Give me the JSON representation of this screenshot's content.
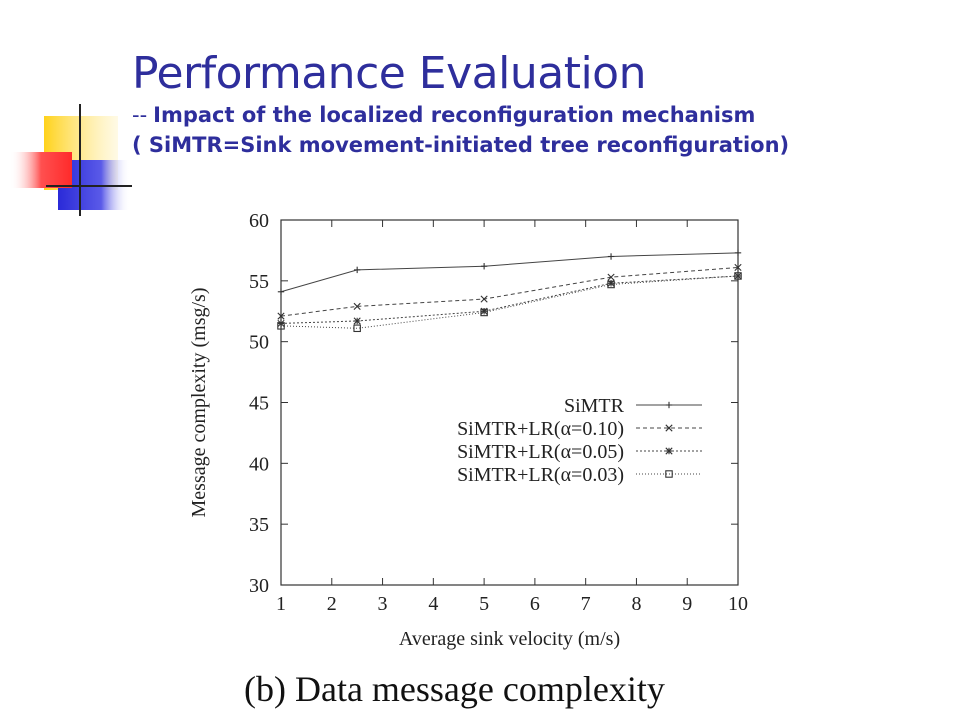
{
  "slide": {
    "title": "Performance Evaluation",
    "subtitle_prefix": "--",
    "subtitle_line1": "Impact of the localized reconfiguration mechanism",
    "subtitle_line2": "( SiMTR=Sink movement-initiated tree reconfiguration)",
    "title_color": "#2e2e9c"
  },
  "chart_data": {
    "type": "line",
    "xlabel": "Average sink velocity (m/s)",
    "ylabel": "Message complexity (msg/s)",
    "caption": "(b) Data message complexity",
    "xticks": [
      1,
      2,
      3,
      4,
      5,
      6,
      7,
      8,
      9,
      10
    ],
    "yticks": [
      30,
      35,
      40,
      45,
      50,
      55,
      60
    ],
    "xlim": [
      1,
      10
    ],
    "ylim": [
      30,
      60
    ],
    "legend_position": "center-right",
    "grid": false,
    "series": [
      {
        "name": "SiMTR",
        "marker": "plus",
        "dash": "none",
        "x": [
          1,
          2.5,
          5,
          7.5,
          10
        ],
        "y": [
          54.1,
          55.9,
          56.2,
          57.0,
          57.3
        ]
      },
      {
        "name": "SiMTR+LR(α=0.10)",
        "marker": "x",
        "dash": "4,3",
        "x": [
          1,
          2.5,
          5,
          7.5,
          10
        ],
        "y": [
          52.1,
          52.9,
          53.5,
          55.3,
          56.1
        ]
      },
      {
        "name": "SiMTR+LR(α=0.05)",
        "marker": "star",
        "dash": "2,2",
        "x": [
          1,
          2.5,
          5,
          7.5,
          10
        ],
        "y": [
          51.5,
          51.7,
          52.5,
          54.8,
          55.4
        ]
      },
      {
        "name": "SiMTR+LR(α=0.03)",
        "marker": "square",
        "dash": "1,2",
        "x": [
          1,
          2.5,
          5,
          7.5,
          10
        ],
        "y": [
          51.3,
          51.1,
          52.4,
          54.7,
          55.4
        ]
      }
    ]
  }
}
